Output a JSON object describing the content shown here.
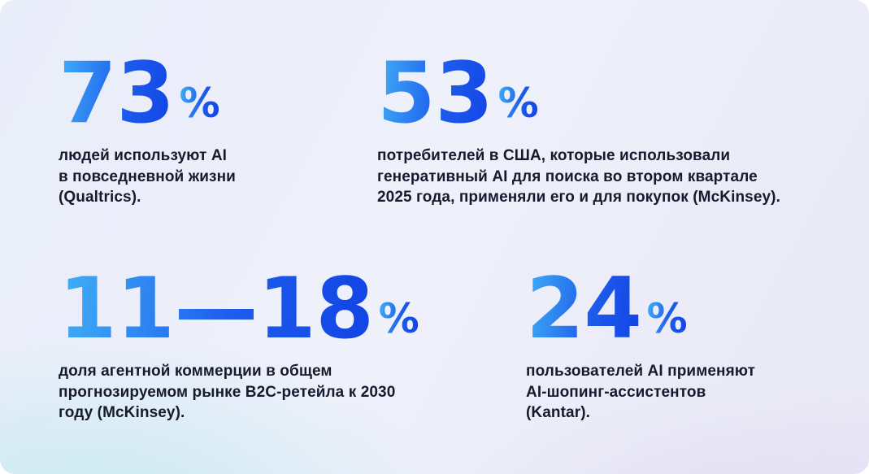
{
  "colors": {
    "number_gradient_start": "#41B0F6",
    "number_gradient_mid": "#1D5CEC",
    "number_gradient_end": "#1243E5",
    "text": "#171A2E",
    "background_base": "#ECEFF9",
    "background_mint": "#C6EAF1",
    "background_lavender": "#E2DDF2"
  },
  "stats": [
    {
      "value": "73",
      "unit": "%",
      "description": [
        "людей используют AI",
        "в повседневной жизни",
        "(Qualtrics)."
      ]
    },
    {
      "value": "53",
      "unit": "%",
      "description": [
        "потребителей в США, которые использовали",
        "генеративный AI для поиска во втором квартале",
        "2025 года, применяли его и для покупок (McKinsey)."
      ]
    },
    {
      "value": "11—18",
      "unit": "%",
      "description": [
        "доля агентной коммерции в общем",
        "прогнозируемом рынке B2C-ретейла к 2030",
        "году (McKinsey)."
      ]
    },
    {
      "value": "24",
      "unit": "%",
      "description": [
        "пользователей AI применяют",
        "AI-шопинг-ассистентов",
        "(Kantar)."
      ]
    }
  ]
}
